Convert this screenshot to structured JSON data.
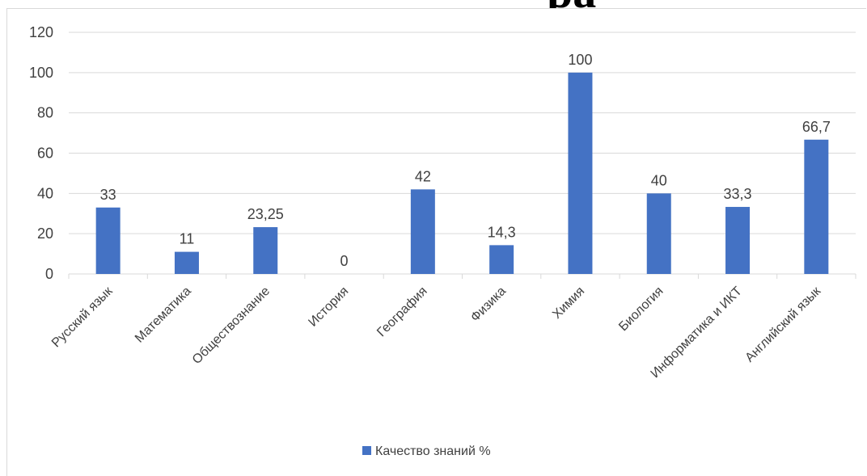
{
  "chart_data": {
    "type": "bar",
    "title_fragment": "ра",
    "categories": [
      "Русский язык",
      "Математика",
      "Обществознание",
      "История",
      "География",
      "Физика",
      "Химия",
      "Биология",
      "Информатика и ИКТ",
      "Английский язык"
    ],
    "series": [
      {
        "name": "Качество знаний %",
        "values": [
          33,
          11,
          23.25,
          0,
          42,
          14.3,
          100,
          40,
          33.3,
          66.7
        ],
        "data_labels": [
          "33",
          "11",
          "23,25",
          "0",
          "42",
          "14,3",
          "100",
          "40",
          "33,3",
          "66,7"
        ],
        "color": "#4472c4"
      }
    ],
    "ylim": [
      0,
      120
    ],
    "yticks": [
      0,
      20,
      40,
      60,
      80,
      100,
      120
    ],
    "ytick_labels": [
      "0",
      "20",
      "40",
      "60",
      "80",
      "100",
      "120"
    ],
    "grid": true,
    "legend_position": "bottom",
    "colors": {
      "bar": "#4472c4",
      "grid": "#d9d9d9",
      "text": "#404040"
    }
  }
}
